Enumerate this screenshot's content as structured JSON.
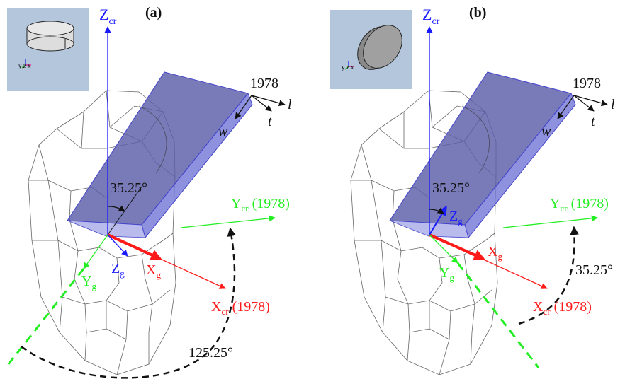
{
  "panels": [
    {
      "label": "(a)",
      "z_cr": "Z",
      "z_cr_sub": "cr",
      "y_cr": "Y",
      "y_cr_sub": "cr",
      "y_cr_tail": " (1978)",
      "x_cr": "X",
      "x_cr_sub": "cr",
      "x_cr_tail": " (1978)",
      "x_g": "X",
      "x_g_sub": "g",
      "y_g": "Y",
      "y_g_sub": "g",
      "z_g": "Z",
      "z_g_sub": "g",
      "plate_id": "1978",
      "l": "l",
      "t": "t",
      "w": "w",
      "angle_inner": "35.25°",
      "angle_outer": "125.25°",
      "inset_axes": "y z x"
    },
    {
      "label": "(b)",
      "z_cr": "Z",
      "z_cr_sub": "cr",
      "y_cr": "Y",
      "y_cr_sub": "cr",
      "y_cr_tail": " (1978)",
      "x_cr": "X",
      "x_cr_sub": "cr",
      "x_cr_tail": " (1978)",
      "x_g": "X",
      "x_g_sub": "g",
      "y_g": "Y",
      "y_g_sub": "g",
      "z_g": "Z",
      "z_g_sub": "g",
      "plate_id": "1978",
      "l": "l",
      "t": "t",
      "w": "w",
      "angle_inner": "35.25°",
      "angle_outer": "35.25°",
      "inset_axes": "y z x"
    }
  ],
  "colors": {
    "blue": "#1a1aff",
    "red": "#ff1a1a",
    "green": "#22ee22",
    "plate": "#5b5ea8",
    "inset_bg": "#b3c6dc"
  }
}
